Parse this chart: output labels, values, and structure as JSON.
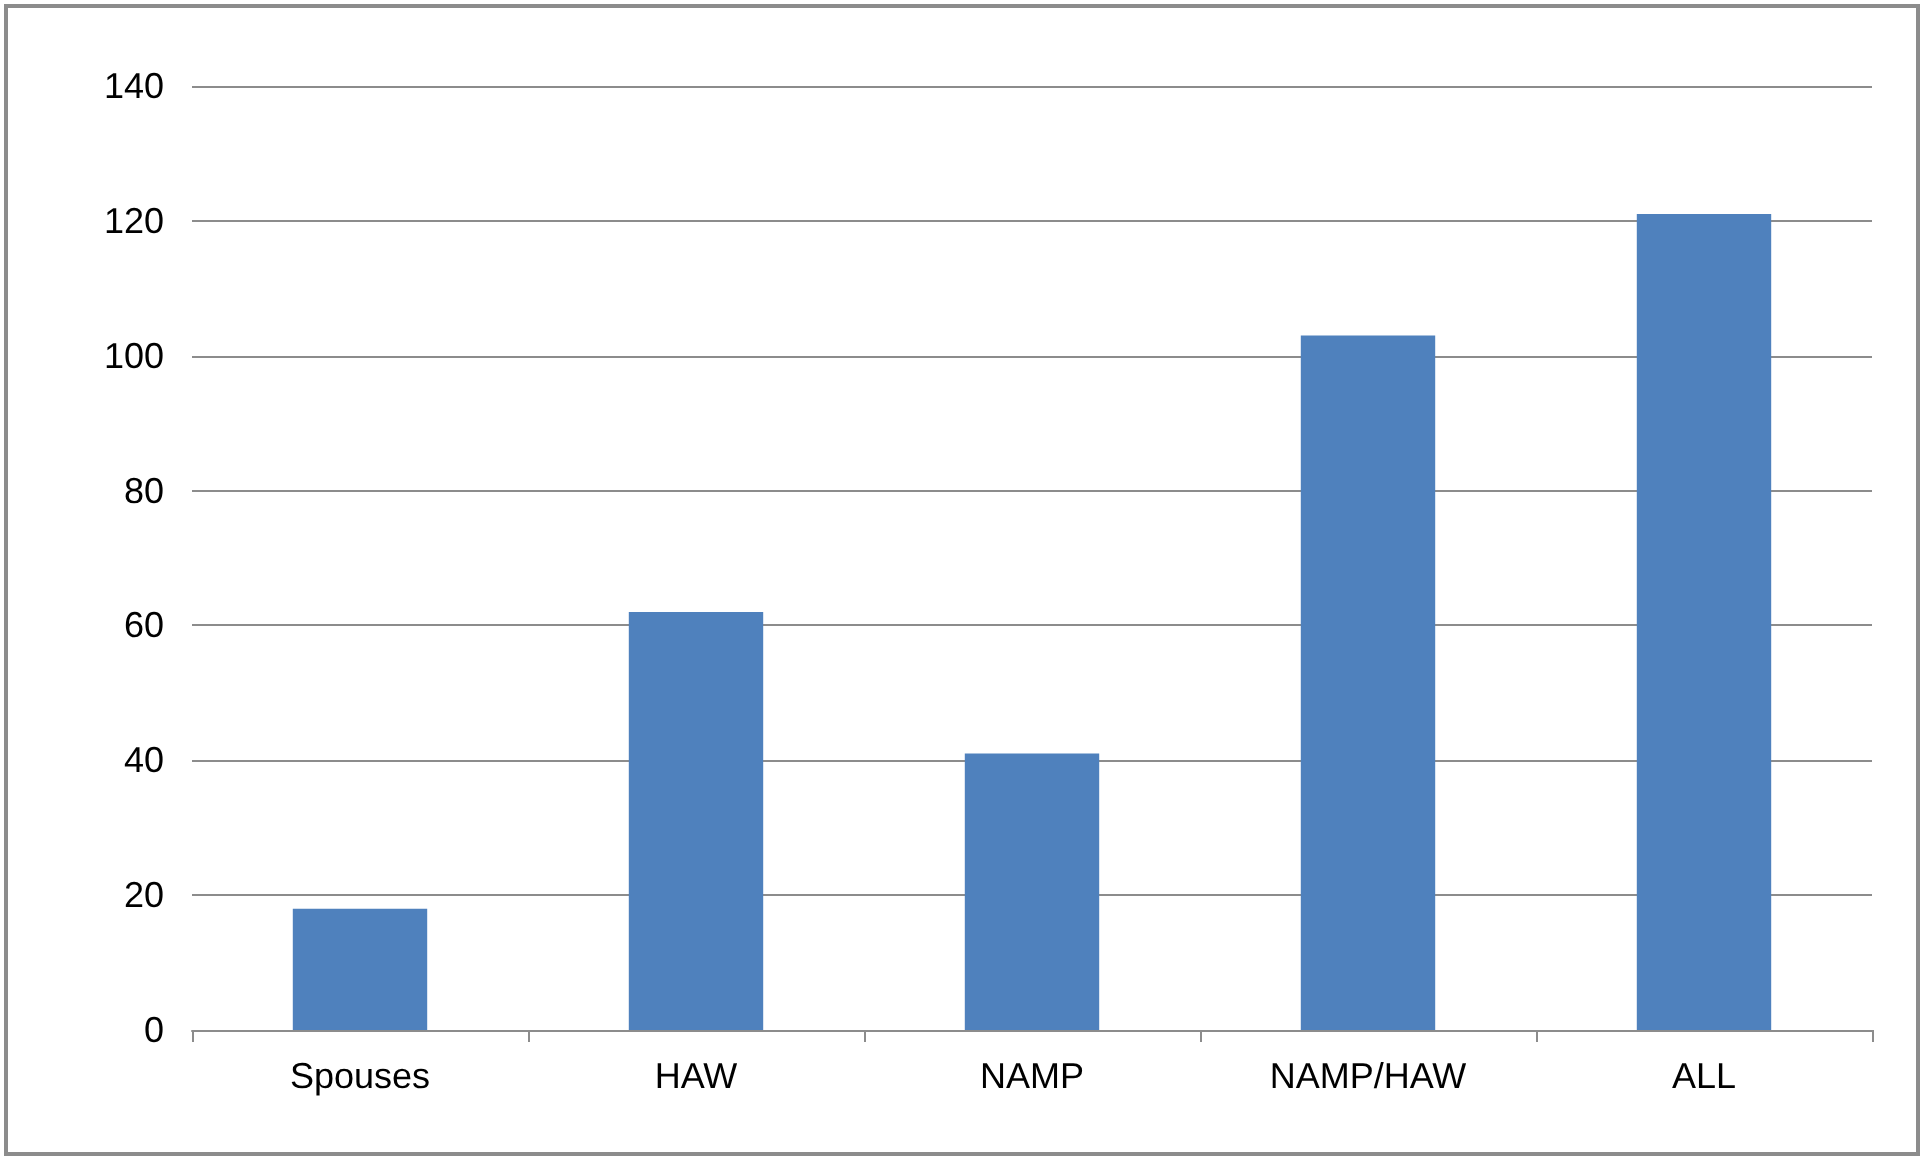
{
  "chart_data": {
    "type": "bar",
    "categories": [
      "Spouses",
      "HAW",
      "NAMP",
      "NAMP/HAW",
      "ALL"
    ],
    "values": [
      18,
      62,
      41,
      103,
      121
    ],
    "color": "#4f81bd",
    "ylim": [
      0,
      140
    ],
    "yticks": [
      0,
      20,
      40,
      60,
      80,
      100,
      120,
      140
    ],
    "grid": "y"
  }
}
